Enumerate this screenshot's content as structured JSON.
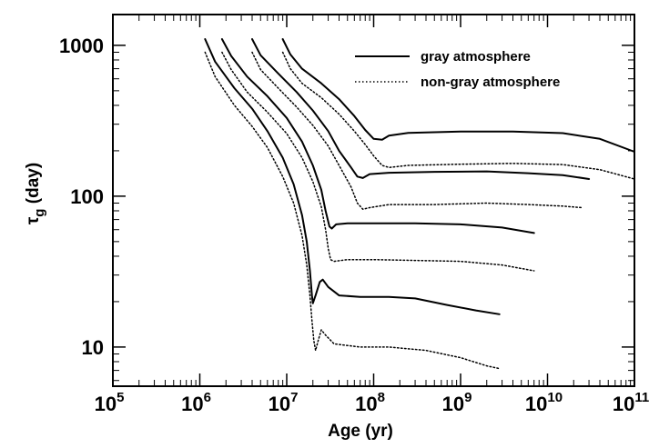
{
  "chart_data": {
    "type": "line",
    "title": "",
    "xlabel": "Age (yr)",
    "ylabel_main": "τ",
    "ylabel_sub": "g",
    "ylabel_unit": " (day)",
    "xscale": "log",
    "yscale": "log",
    "xlim": [
      100000,
      100000000000
    ],
    "ylim": [
      5.5,
      1600
    ],
    "grid": false,
    "legend_position": "top-right",
    "x_ticks": [
      {
        "value": 100000,
        "base": "10",
        "exp": "5"
      },
      {
        "value": 1000000,
        "base": "10",
        "exp": "6"
      },
      {
        "value": 10000000,
        "base": "10",
        "exp": "7"
      },
      {
        "value": 100000000,
        "base": "10",
        "exp": "8"
      },
      {
        "value": 1000000000,
        "base": "10",
        "exp": "9"
      },
      {
        "value": 10000000000,
        "base": "10",
        "exp": "10"
      },
      {
        "value": 100000000000,
        "base": "10",
        "exp": "11"
      }
    ],
    "y_ticks": [
      {
        "value": 10,
        "label": "10"
      },
      {
        "value": 100,
        "label": "100"
      },
      {
        "value": 1000,
        "label": "1000"
      }
    ],
    "series": [
      {
        "name": "gray atmosphere",
        "style": "solid",
        "points": [
          [
            1150000.0,
            1100
          ],
          [
            1500000.0,
            780
          ],
          [
            2500000.0,
            520
          ],
          [
            4000000.0,
            380
          ],
          [
            6000000.0,
            270
          ],
          [
            9000000.0,
            180
          ],
          [
            12000000.0,
            120
          ],
          [
            15000000.0,
            75
          ],
          [
            17000000.0,
            50
          ],
          [
            18500000.0,
            32
          ],
          [
            19500000.0,
            22
          ],
          [
            20000000.0,
            19.5
          ],
          [
            21500000.0,
            22
          ],
          [
            24000000.0,
            27
          ],
          [
            26000000.0,
            28
          ],
          [
            30000000.0,
            25
          ],
          [
            40000000.0,
            22
          ],
          [
            70000000.0,
            21.5
          ],
          [
            150000000.0,
            21.5
          ],
          [
            300000000.0,
            21
          ],
          [
            700000000.0,
            19
          ],
          [
            1500000000.0,
            17.5
          ],
          [
            2800000000.0,
            16.5
          ]
        ]
      },
      {
        "name": "gray atmosphere",
        "style": "solid",
        "points": [
          [
            1800000.0,
            1100
          ],
          [
            2300000.0,
            850
          ],
          [
            3500000.0,
            620
          ],
          [
            6000000.0,
            460
          ],
          [
            10000000.0,
            330
          ],
          [
            15000000.0,
            230
          ],
          [
            20000000.0,
            160
          ],
          [
            25000000.0,
            110
          ],
          [
            28000000.0,
            80
          ],
          [
            31000000.0,
            63
          ],
          [
            33000000.0,
            61
          ],
          [
            37000000.0,
            65
          ],
          [
            50000000.0,
            66
          ],
          [
            100000000.0,
            66
          ],
          [
            300000000.0,
            66
          ],
          [
            1000000000.0,
            65
          ],
          [
            3000000000.0,
            62
          ],
          [
            7000000000.0,
            57
          ]
        ]
      },
      {
        "name": "gray atmosphere",
        "style": "solid",
        "points": [
          [
            4000000.0,
            1100
          ],
          [
            5000000.0,
            860
          ],
          [
            8000000.0,
            650
          ],
          [
            13000000.0,
            490
          ],
          [
            20000000.0,
            370
          ],
          [
            30000000.0,
            270
          ],
          [
            40000000.0,
            200
          ],
          [
            55000000.0,
            155
          ],
          [
            65000000.0,
            135
          ],
          [
            75000000.0,
            132
          ],
          [
            90000000.0,
            140
          ],
          [
            150000000.0,
            143
          ],
          [
            500000000.0,
            145
          ],
          [
            2000000000.0,
            146
          ],
          [
            6000000000.0,
            142
          ],
          [
            15000000000.0,
            138
          ],
          [
            30000000000.0,
            130
          ]
        ]
      },
      {
        "name": "gray atmosphere",
        "style": "solid",
        "points": [
          [
            9000000.0,
            1100
          ],
          [
            11000000.0,
            870
          ],
          [
            15000000.0,
            700
          ],
          [
            25000000.0,
            560
          ],
          [
            40000000.0,
            440
          ],
          [
            60000000.0,
            340
          ],
          [
            80000000.0,
            275
          ],
          [
            100000000.0,
            240
          ],
          [
            125000000.0,
            237
          ],
          [
            150000000.0,
            252
          ],
          [
            250000000.0,
            263
          ],
          [
            1000000000.0,
            268
          ],
          [
            4000000000.0,
            268
          ],
          [
            15000000000.0,
            262
          ],
          [
            40000000000.0,
            240
          ],
          [
            100000000000.0,
            197
          ]
        ]
      },
      {
        "name": "non-gray atmosphere",
        "style": "dotted",
        "points": [
          [
            1150000.0,
            900
          ],
          [
            1500000.0,
            620
          ],
          [
            2500000.0,
            400
          ],
          [
            4000000.0,
            290
          ],
          [
            6000000.0,
            210
          ],
          [
            9000000.0,
            135
          ],
          [
            12000000.0,
            90
          ],
          [
            15000000.0,
            55
          ],
          [
            17000000.0,
            35
          ],
          [
            18500000.0,
            22
          ],
          [
            19500000.0,
            15
          ],
          [
            20500000.0,
            11
          ],
          [
            21500000.0,
            9.5
          ],
          [
            23000000.0,
            11
          ],
          [
            25000000.0,
            13
          ],
          [
            28000000.0,
            12
          ],
          [
            35000000.0,
            10.5
          ],
          [
            70000000.0,
            10
          ],
          [
            150000000.0,
            10
          ],
          [
            400000000.0,
            9.5
          ],
          [
            1000000000.0,
            8.5
          ],
          [
            2000000000.0,
            7.5
          ],
          [
            2800000000.0,
            7.2
          ]
        ]
      },
      {
        "name": "non-gray atmosphere",
        "style": "dotted",
        "points": [
          [
            1800000.0,
            900
          ],
          [
            2300000.0,
            690
          ],
          [
            3500000.0,
            490
          ],
          [
            6000000.0,
            360
          ],
          [
            10000000.0,
            260
          ],
          [
            15000000.0,
            180
          ],
          [
            20000000.0,
            125
          ],
          [
            25000000.0,
            85
          ],
          [
            28000000.0,
            60
          ],
          [
            30000000.0,
            45
          ],
          [
            32000000.0,
            38
          ],
          [
            35000000.0,
            37
          ],
          [
            50000000.0,
            38
          ],
          [
            100000000.0,
            38
          ],
          [
            300000000.0,
            37.5
          ],
          [
            1000000000.0,
            37
          ],
          [
            3000000000.0,
            35
          ],
          [
            7000000000.0,
            32
          ]
        ]
      },
      {
        "name": "non-gray atmosphere",
        "style": "dotted",
        "points": [
          [
            4000000.0,
            900
          ],
          [
            5000000.0,
            690
          ],
          [
            8000000.0,
            520
          ],
          [
            13000000.0,
            390
          ],
          [
            20000000.0,
            295
          ],
          [
            30000000.0,
            215
          ],
          [
            40000000.0,
            160
          ],
          [
            55000000.0,
            115
          ],
          [
            65000000.0,
            90
          ],
          [
            75000000.0,
            82
          ],
          [
            90000000.0,
            84
          ],
          [
            150000000.0,
            88
          ],
          [
            500000000.0,
            88
          ],
          [
            2000000000.0,
            90
          ],
          [
            6000000000.0,
            88
          ],
          [
            15000000000.0,
            86
          ],
          [
            25000000000.0,
            84
          ]
        ]
      },
      {
        "name": "non-gray atmosphere",
        "style": "dotted",
        "points": [
          [
            9000000.0,
            900
          ],
          [
            11000000.0,
            700
          ],
          [
            15000000.0,
            560
          ],
          [
            25000000.0,
            450
          ],
          [
            40000000.0,
            350
          ],
          [
            60000000.0,
            270
          ],
          [
            80000000.0,
            220
          ],
          [
            100000000.0,
            185
          ],
          [
            125000000.0,
            160
          ],
          [
            150000000.0,
            155
          ],
          [
            250000000.0,
            160
          ],
          [
            1000000000.0,
            163
          ],
          [
            4000000000.0,
            165
          ],
          [
            15000000000.0,
            162
          ],
          [
            40000000000.0,
            150
          ],
          [
            100000000000.0,
            130
          ]
        ]
      }
    ],
    "legend": [
      {
        "label": "gray atmosphere",
        "style": "solid"
      },
      {
        "label": "non-gray atmosphere",
        "style": "dotted"
      }
    ]
  }
}
